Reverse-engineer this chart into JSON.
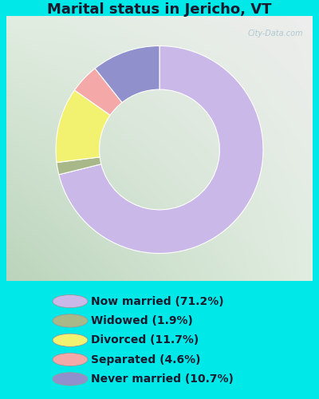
{
  "title": "Marital status in Jericho, VT",
  "slices": [
    71.2,
    1.9,
    11.7,
    4.6,
    10.7
  ],
  "colors": [
    "#c9b8e8",
    "#a8b888",
    "#f2f270",
    "#f4a8a8",
    "#9090cc"
  ],
  "labels": [
    "Now married (71.2%)",
    "Widowed (1.9%)",
    "Divorced (11.7%)",
    "Separated (4.6%)",
    "Never married (10.7%)"
  ],
  "legend_colors": [
    "#c9b8e8",
    "#a8b888",
    "#f2f270",
    "#f4a8a8",
    "#9090cc"
  ],
  "bg_outer": "#00e8e8",
  "watermark": "City-Data.com",
  "title_fontsize": 13,
  "legend_fontsize": 10
}
